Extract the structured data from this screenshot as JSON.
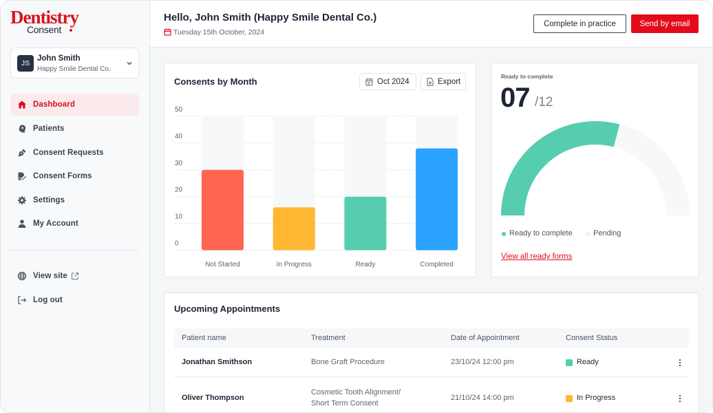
{
  "brand": {
    "logo_top": "Dentistry",
    "logo_bottom": "Consent"
  },
  "user": {
    "initials": "JS",
    "name": "John Smith",
    "org": "Happy Smile Dental Co."
  },
  "sidebar": {
    "items": [
      {
        "label": "Dashboard",
        "icon": "home-icon",
        "active": true
      },
      {
        "label": "Patients",
        "icon": "patient-head-icon"
      },
      {
        "label": "Consent Requests",
        "icon": "pen-nib-icon"
      },
      {
        "label": "Consent Forms",
        "icon": "signed-form-icon"
      },
      {
        "label": "Settings",
        "icon": "gear-icon"
      },
      {
        "label": "My Account",
        "icon": "user-icon"
      }
    ],
    "footer": [
      {
        "label": "View site",
        "icon": "globe-icon"
      },
      {
        "label": "Log out",
        "icon": "logout-icon"
      }
    ]
  },
  "header": {
    "greeting": "Hello, John Smith (Happy Smile Dental Co.)",
    "date": "Tuesday 15th October, 2024",
    "complete_label": "Complete in practice",
    "email_label": "Send by email"
  },
  "colors": {
    "accent": "#e30a1a",
    "not_started": "#ff6550",
    "in_progress": "#ffb632",
    "ready": "#55cdae",
    "completed": "#29a3ff",
    "pending": "#f7f8fa"
  },
  "chart_card": {
    "title": "Consents by Month",
    "period_label": "Oct 2024",
    "export_label": "Export"
  },
  "chart_data": {
    "type": "bar",
    "title": "Consents by Month",
    "categories": [
      "Not Started",
      "In Progress",
      "Ready",
      "Completed"
    ],
    "values": [
      30,
      16,
      20,
      38
    ],
    "colors": [
      "#ff6550",
      "#ffb632",
      "#55cdae",
      "#29a3ff"
    ],
    "yticks": [
      0,
      10,
      20,
      30,
      40,
      50
    ],
    "ylim": [
      0,
      50
    ],
    "xlabel": "",
    "ylabel": "",
    "grid": true
  },
  "gauge": {
    "subtitle": "Ready to complete",
    "value_label": "07",
    "total_label": "/12",
    "value": 7,
    "total": 12,
    "legend": [
      {
        "label": "Ready to complete",
        "color": "#55cdae"
      },
      {
        "label": "Pending",
        "color": "#eef1f4"
      }
    ],
    "link_label": "View all ready forms"
  },
  "appointments": {
    "title": "Upcoming Appointments",
    "columns": [
      "Patient name",
      "Treatment",
      "Date of Appointment",
      "Consent Status"
    ],
    "rows": [
      {
        "patient": "Jonathan Smithson",
        "treatment": [
          "Bone Graft Procedure"
        ],
        "date": "23/10/24 12:00 pm",
        "status": "Ready",
        "status_color": "#55cdae"
      },
      {
        "patient": "Oliver Thompson",
        "treatment": [
          "Cosmetic Tooth Alignment/",
          "Short Term Consent"
        ],
        "date": "21/10/24 14:00 pm",
        "status": "In Progress",
        "status_color": "#ffb632"
      }
    ]
  }
}
